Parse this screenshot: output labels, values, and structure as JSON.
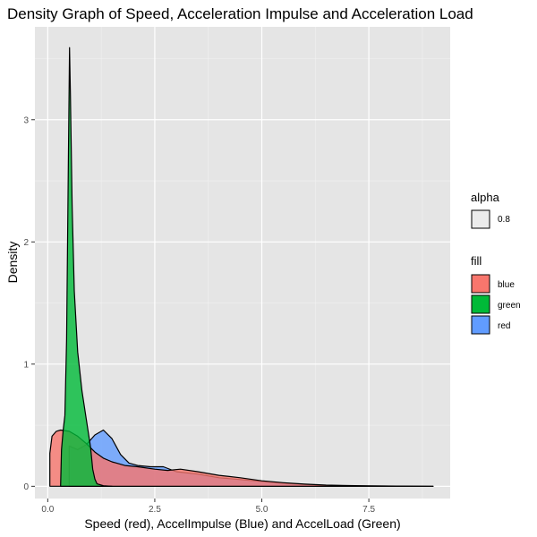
{
  "chart_data": {
    "type": "area",
    "title": "Density Graph of Speed, Acceleration Impulse and Acceleration Load",
    "xlabel": "Speed (red), AccelImpulse (Blue) and AccelLoad (Green)",
    "ylabel": "Density",
    "xlim": [
      -0.3,
      9.4
    ],
    "ylim": [
      -0.1,
      3.76
    ],
    "x_ticks": [
      0,
      2.5,
      5,
      7.5
    ],
    "x_tick_labels": [
      "0.0",
      "2.5",
      "5.0",
      "7.5"
    ],
    "y_ticks": [
      0,
      1,
      2,
      3
    ],
    "y_tick_labels": [
      "0",
      "1",
      "2",
      "3"
    ],
    "grid": true,
    "background": "#e5e5e5",
    "legend": [
      {
        "title": "alpha",
        "entries": [
          {
            "label": "0.8",
            "color": "#ebebeb"
          }
        ]
      },
      {
        "title": "fill",
        "entries": [
          {
            "label": "blue",
            "color": "#F8766D"
          },
          {
            "label": "green",
            "color": "#00BA38"
          },
          {
            "label": "red",
            "color": "#619CFF"
          }
        ]
      }
    ],
    "legend_position": "right",
    "series": [
      {
        "fill_label": "red",
        "color": "#619CFF",
        "points": [
          [
            0.5,
            0.0
          ],
          [
            0.5,
            0.33
          ],
          [
            0.7,
            0.3
          ],
          [
            0.9,
            0.34
          ],
          [
            1.1,
            0.42
          ],
          [
            1.3,
            0.46
          ],
          [
            1.5,
            0.39
          ],
          [
            1.7,
            0.26
          ],
          [
            1.9,
            0.19
          ],
          [
            2.1,
            0.17
          ],
          [
            2.4,
            0.16
          ],
          [
            2.7,
            0.16
          ],
          [
            3.0,
            0.12
          ],
          [
            3.5,
            0.1
          ],
          [
            4.0,
            0.07
          ],
          [
            4.5,
            0.055
          ],
          [
            5.0,
            0.04
          ],
          [
            5.5,
            0.025
          ],
          [
            6.0,
            0.015
          ],
          [
            6.5,
            0.007
          ],
          [
            7.0,
            0.004
          ],
          [
            8.0,
            0.002
          ],
          [
            9.0,
            0.0
          ]
        ]
      },
      {
        "fill_label": "blue",
        "color": "#F8766D",
        "points": [
          [
            0.05,
            0.0
          ],
          [
            0.05,
            0.27
          ],
          [
            0.1,
            0.41
          ],
          [
            0.2,
            0.45
          ],
          [
            0.3,
            0.46
          ],
          [
            0.5,
            0.45
          ],
          [
            0.7,
            0.41
          ],
          [
            0.9,
            0.35
          ],
          [
            1.1,
            0.28
          ],
          [
            1.3,
            0.23
          ],
          [
            1.5,
            0.2
          ],
          [
            1.8,
            0.17
          ],
          [
            2.1,
            0.16
          ],
          [
            2.5,
            0.14
          ],
          [
            2.8,
            0.13
          ],
          [
            3.1,
            0.14
          ],
          [
            3.5,
            0.12
          ],
          [
            4.0,
            0.09
          ],
          [
            4.5,
            0.07
          ],
          [
            5.0,
            0.045
          ],
          [
            5.5,
            0.03
          ],
          [
            6.0,
            0.018
          ],
          [
            6.5,
            0.01
          ],
          [
            7.0,
            0.006
          ],
          [
            7.5,
            0.003
          ],
          [
            8.5,
            0.001
          ],
          [
            9.0,
            0.0
          ]
        ]
      },
      {
        "fill_label": "green",
        "color": "#00BA38",
        "points": [
          [
            0.3,
            0.0
          ],
          [
            0.32,
            0.3
          ],
          [
            0.36,
            0.46
          ],
          [
            0.4,
            0.58
          ],
          [
            0.44,
            1.2
          ],
          [
            0.48,
            2.6
          ],
          [
            0.51,
            3.59
          ],
          [
            0.53,
            3.2
          ],
          [
            0.57,
            2.3
          ],
          [
            0.62,
            1.6
          ],
          [
            0.7,
            1.1
          ],
          [
            0.8,
            0.78
          ],
          [
            0.9,
            0.55
          ],
          [
            1.0,
            0.32
          ],
          [
            1.05,
            0.14
          ],
          [
            1.1,
            0.06
          ],
          [
            1.15,
            0.02
          ],
          [
            1.3,
            0.005
          ],
          [
            1.5,
            0.0
          ]
        ]
      }
    ]
  }
}
